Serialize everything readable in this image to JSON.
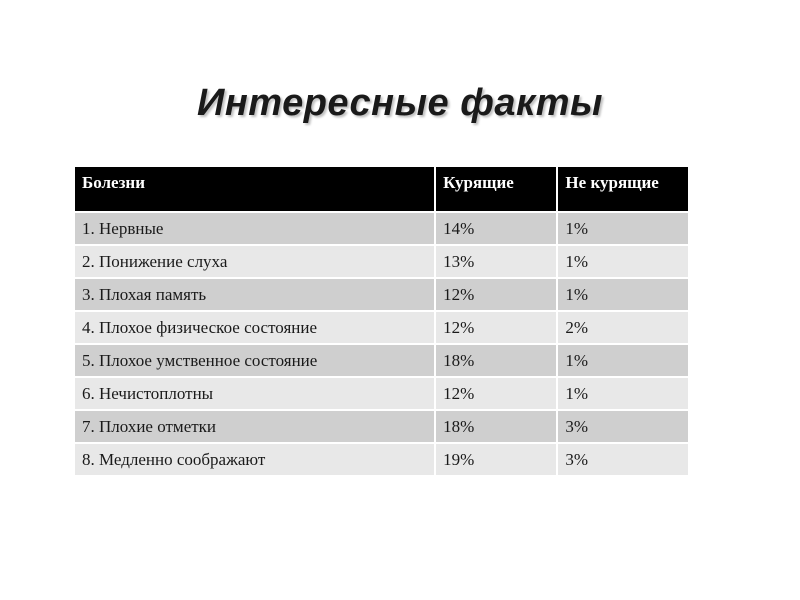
{
  "title": "Интересные факты",
  "table": {
    "headers": [
      "Болезни",
      "Курящие",
      "Не курящие"
    ],
    "rows": [
      [
        "1. Нервные",
        "14%",
        "1%"
      ],
      [
        "2. Понижение слуха",
        "13%",
        "1%"
      ],
      [
        "3. Плохая память",
        "12%",
        "1%"
      ],
      [
        "4. Плохое физическое  состояние",
        "12%",
        "2%"
      ],
      [
        "5. Плохое умственное состояние",
        "18%",
        "1%"
      ],
      [
        "6. Нечистоплотны",
        "12%",
        "1%"
      ],
      [
        "7. Плохие отметки",
        "18%",
        "3%"
      ],
      [
        "8. Медленно соображают",
        "19%",
        "3%"
      ]
    ]
  },
  "colors": {
    "header_bg": "#000000",
    "header_text": "#ffffff",
    "row_dark": "#cfcfcf",
    "row_light": "#e8e8e8"
  }
}
